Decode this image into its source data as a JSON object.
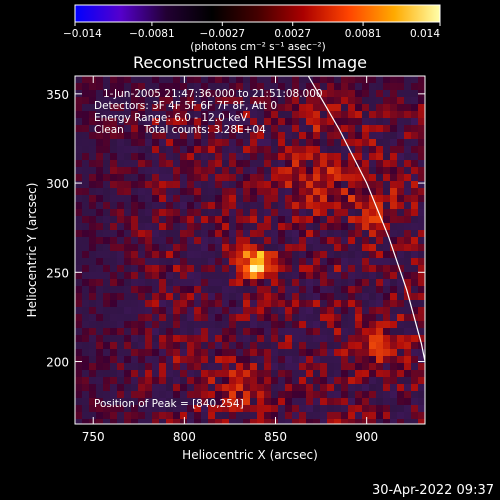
{
  "colorbar": {
    "ticks": [
      {
        "value": -0.014,
        "label": "−0.014"
      },
      {
        "value": -0.0081,
        "label": "−0.0081"
      },
      {
        "value": -0.0027,
        "label": "−0.0027"
      },
      {
        "value": 0.0027,
        "label": "0.0027"
      },
      {
        "value": 0.0081,
        "label": "0.0081"
      },
      {
        "value": 0.014,
        "label": "0.014"
      }
    ],
    "range": [
      -0.014,
      0.014
    ],
    "units_label": "(photons cm⁻² s⁻¹ asec⁻²)",
    "colors": [
      "#0000ff",
      "#5500cc",
      "#220033",
      "#000000",
      "#440000",
      "#aa0000",
      "#ff4400",
      "#ffaa00",
      "#ffffaa"
    ]
  },
  "chart_data": {
    "type": "heatmap",
    "title": "Reconstructed RHESSI Image",
    "xlabel": "Heliocentric X (arcsec)",
    "ylabel": "Heliocentric Y (arcsec)",
    "xlim": [
      740,
      932
    ],
    "ylim": [
      165,
      360
    ],
    "xticks": [
      750,
      800,
      850,
      900
    ],
    "yticks": [
      200,
      250,
      300,
      350
    ],
    "info_lines": [
      "1-Jun-2005 21:47:36.000 to 21:51:08.000",
      "Detectors: 3F 4F 5F 6F 7F 8F, Att 0",
      "Energy Range: 6.0 - 12.0 keV",
      "Clean      Total counts: 3.28E+04"
    ],
    "peak_label": "Position of Peak = [840,254]",
    "peak": {
      "x": 840,
      "y": 254,
      "value": 0.014
    },
    "limb_curve": [
      [
        868,
        360
      ],
      [
        885,
        330
      ],
      [
        900,
        300
      ],
      [
        912,
        270
      ],
      [
        922,
        240
      ],
      [
        930,
        210
      ],
      [
        936,
        180
      ],
      [
        938,
        165
      ]
    ],
    "sources": [
      {
        "x": 840,
        "y": 254,
        "sigma": 6,
        "amp": 1.0
      },
      {
        "x": 905,
        "y": 210,
        "sigma": 8,
        "amp": 0.45
      },
      {
        "x": 830,
        "y": 185,
        "sigma": 10,
        "amp": 0.3
      },
      {
        "x": 875,
        "y": 300,
        "sigma": 12,
        "amp": 0.3
      },
      {
        "x": 905,
        "y": 285,
        "sigma": 10,
        "amp": 0.3
      },
      {
        "x": 880,
        "y": 340,
        "sigma": 10,
        "amp": 0.25
      }
    ]
  },
  "timestamp": "30-Apr-2022 09:37"
}
